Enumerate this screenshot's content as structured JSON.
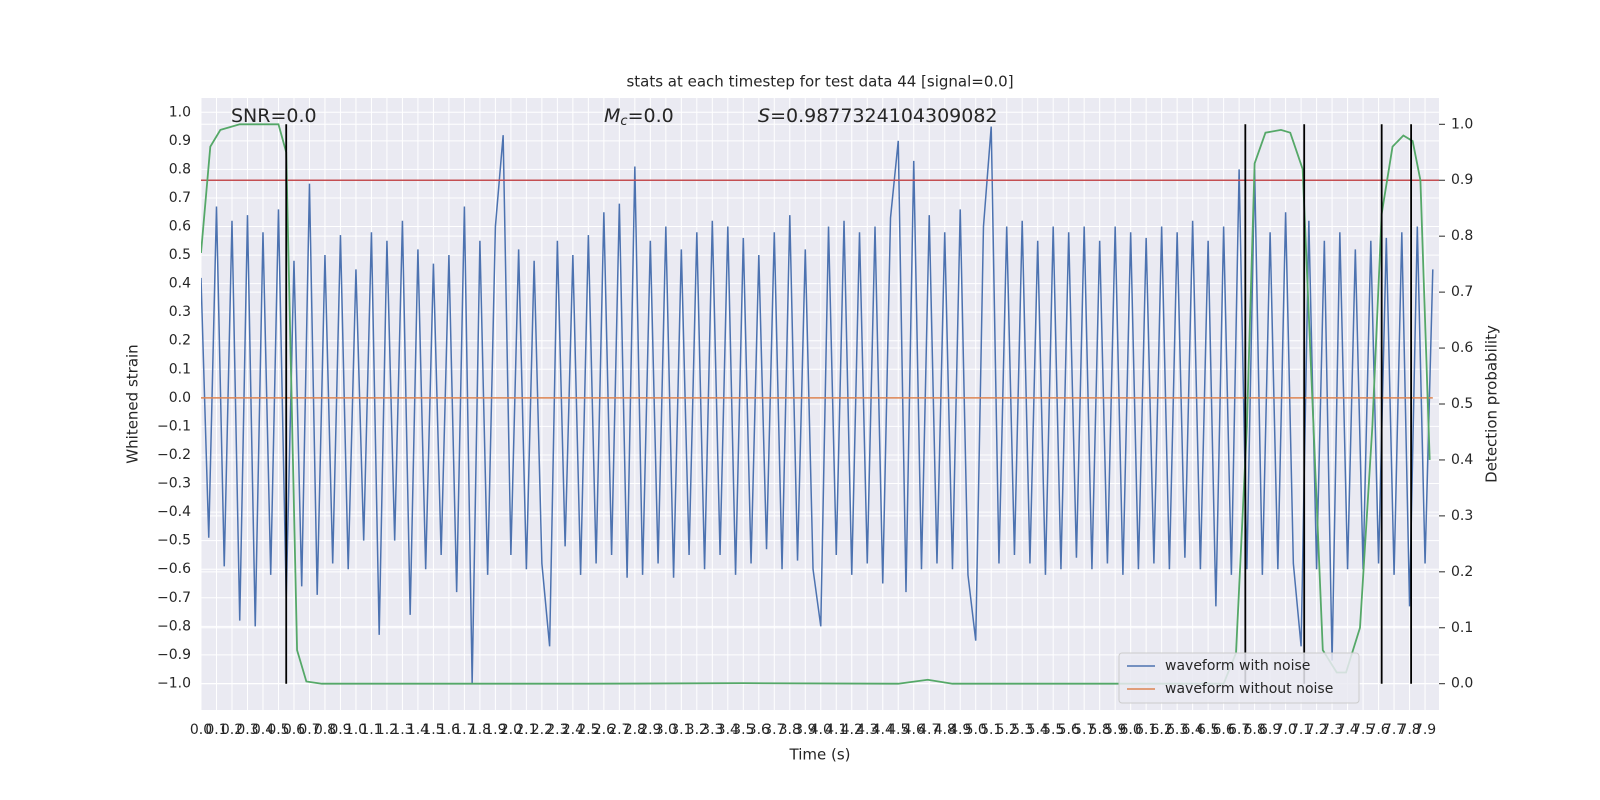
{
  "chart_data": {
    "type": "line",
    "title": "stats at each timestep for test data 44 [signal=0.0]",
    "xlabel": "Time (s)",
    "ylabel": "Whitened strain",
    "y2label": "Detection probability",
    "annotations": [
      {
        "text": "SNR=0.0"
      },
      {
        "symbol": "M",
        "subscript": "c",
        "text": "=0.0"
      },
      {
        "symbol": "S",
        "text": "=0.9877324104309082"
      }
    ],
    "xlim": [
      0,
      7.99
    ],
    "ylim": [
      -1.093,
      1.05
    ],
    "y2lim": [
      -0.047,
      1.047
    ],
    "grid": true,
    "background": "#eaeaf2",
    "legend": "lower right",
    "xticks": [
      {
        "value": 0,
        "label": "0.0"
      },
      0.1,
      0.2,
      0.3,
      0.4,
      0.5,
      0.6,
      0.7,
      0.8,
      0.9,
      {
        "value": 1,
        "label": "1.0"
      },
      1.1,
      1.2,
      1.3,
      1.4,
      1.5,
      1.6,
      1.7,
      1.8,
      1.9,
      {
        "value": 2,
        "label": "2.0"
      },
      2.1,
      2.2,
      2.3,
      2.4,
      2.5,
      2.6,
      2.7,
      2.8,
      2.9,
      {
        "value": 3,
        "label": "3.0"
      },
      3.1,
      3.2,
      3.3,
      3.4,
      3.5,
      3.6,
      3.7,
      3.8,
      3.9,
      {
        "value": 4,
        "label": "4.0"
      },
      4.1,
      4.2,
      4.3,
      4.4,
      4.5,
      4.6,
      4.7,
      4.8,
      4.9,
      {
        "value": 5,
        "label": "5.0"
      },
      5.1,
      5.2,
      5.3,
      5.4,
      5.5,
      5.6,
      5.7,
      5.8,
      5.9,
      {
        "value": 6,
        "label": "6.0"
      },
      6.1,
      6.2,
      6.3,
      6.4,
      6.5,
      6.6,
      6.7,
      6.8,
      6.9,
      {
        "value": 7,
        "label": "7.0"
      },
      7.1,
      7.2,
      7.3,
      7.4,
      7.5,
      7.6,
      7.7,
      7.8,
      7.9
    ],
    "yticks": [
      {
        "value": -1,
        "label": "−1.0"
      },
      {
        "value": -0.9,
        "label": "−0.9"
      },
      {
        "value": -0.8,
        "label": "−0.8"
      },
      {
        "value": -0.7,
        "label": "−0.7"
      },
      {
        "value": -0.6,
        "label": "−0.6"
      },
      {
        "value": -0.5,
        "label": "−0.5"
      },
      {
        "value": -0.4,
        "label": "−0.4"
      },
      {
        "value": -0.3,
        "label": "−0.3"
      },
      {
        "value": -0.2,
        "label": "−0.2"
      },
      {
        "value": -0.1,
        "label": "−0.1"
      },
      {
        "value": 0,
        "label": "0.0"
      },
      0.1,
      0.2,
      0.3,
      0.4,
      0.5,
      0.6,
      0.7,
      0.8,
      0.9,
      {
        "value": 1,
        "label": "1.0"
      }
    ],
    "y2ticks": [
      {
        "value": 0,
        "label": "0.0"
      },
      0.1,
      0.2,
      0.3,
      0.4,
      0.5,
      0.6,
      0.7,
      0.8,
      0.9,
      {
        "value": 1,
        "label": "1.0"
      }
    ],
    "series": [
      {
        "name": "waveform with noise",
        "color": "#4c72b0",
        "axis": "y",
        "x": [
          0,
          0.05,
          0.1,
          0.15,
          0.2,
          0.25,
          0.3,
          0.35,
          0.4,
          0.45,
          0.5,
          0.55,
          0.6,
          0.65,
          0.7,
          0.75,
          0.8,
          0.85,
          0.9,
          0.95,
          1,
          1.05,
          1.1,
          1.15,
          1.2,
          1.25,
          1.3,
          1.35,
          1.4,
          1.45,
          1.5,
          1.55,
          1.6,
          1.65,
          1.7,
          1.75,
          1.8,
          1.85,
          1.9,
          1.95,
          2,
          2.05,
          2.1,
          2.15,
          2.2,
          2.25,
          2.3,
          2.35,
          2.4,
          2.45,
          2.5,
          2.55,
          2.6,
          2.65,
          2.7,
          2.75,
          2.8,
          2.85,
          2.9,
          2.95,
          3,
          3.05,
          3.1,
          3.15,
          3.2,
          3.25,
          3.3,
          3.35,
          3.4,
          3.45,
          3.5,
          3.55,
          3.6,
          3.65,
          3.7,
          3.75,
          3.8,
          3.85,
          3.9,
          3.95,
          4,
          4.05,
          4.1,
          4.15,
          4.2,
          4.25,
          4.3,
          4.35,
          4.4,
          4.45,
          4.5,
          4.55,
          4.6,
          4.65,
          4.7,
          4.75,
          4.8,
          4.85,
          4.9,
          4.95,
          5,
          5.05,
          5.1,
          5.15,
          5.2,
          5.25,
          5.3,
          5.35,
          5.4,
          5.45,
          5.5,
          5.55,
          5.6,
          5.65,
          5.7,
          5.75,
          5.8,
          5.85,
          5.9,
          5.95,
          6,
          6.05,
          6.1,
          6.15,
          6.2,
          6.25,
          6.3,
          6.35,
          6.4,
          6.45,
          6.5,
          6.55,
          6.6,
          6.65,
          6.7,
          6.75,
          6.8,
          6.85,
          6.9,
          6.95,
          7,
          7.05,
          7.1,
          7.15,
          7.2,
          7.25,
          7.3,
          7.35,
          7.4,
          7.45,
          7.5,
          7.55,
          7.6,
          7.65,
          7.7,
          7.75,
          7.8,
          7.85,
          7.9,
          7.95
        ],
        "values": [
          0.42,
          -0.49,
          0.67,
          -0.59,
          0.62,
          -0.78,
          0.64,
          -0.8,
          0.58,
          -0.62,
          0.66,
          -0.7,
          0.48,
          -0.66,
          0.75,
          -0.69,
          0.5,
          -0.58,
          0.57,
          -0.6,
          0.45,
          -0.5,
          0.58,
          -0.83,
          0.55,
          -0.5,
          0.62,
          -0.76,
          0.52,
          -0.6,
          0.47,
          -0.55,
          0.5,
          -0.68,
          0.67,
          -1.0,
          0.55,
          -0.62,
          0.6,
          0.92,
          -0.55,
          0.52,
          -0.6,
          0.48,
          -0.58,
          -0.87,
          0.55,
          -0.52,
          0.5,
          -0.62,
          0.57,
          -0.58,
          0.65,
          -0.55,
          0.68,
          -0.63,
          0.81,
          -0.62,
          0.55,
          -0.58,
          0.6,
          -0.63,
          0.52,
          -0.55,
          0.58,
          -0.6,
          0.62,
          -0.55,
          0.6,
          -0.62,
          0.56,
          -0.58,
          0.5,
          -0.53,
          0.58,
          -0.6,
          0.64,
          -0.57,
          0.52,
          -0.6,
          -0.8,
          0.6,
          -0.55,
          0.62,
          -0.62,
          0.58,
          -0.58,
          0.6,
          -0.65,
          0.63,
          0.9,
          -0.68,
          0.83,
          -0.6,
          0.64,
          -0.58,
          0.58,
          -0.6,
          0.66,
          -0.62,
          -0.85,
          0.6,
          0.95,
          -0.58,
          0.6,
          -0.55,
          0.62,
          -0.58,
          0.55,
          -0.62,
          0.6,
          -0.6,
          0.58,
          -0.56,
          0.6,
          -0.6,
          0.55,
          -0.58,
          0.6,
          -0.62,
          0.58,
          -0.6,
          0.56,
          -0.58,
          0.6,
          -0.6,
          0.58,
          -0.56,
          0.62,
          -0.6,
          0.55,
          -0.73,
          0.6,
          -0.62,
          0.8,
          -0.6,
          0.8,
          -0.62,
          0.58,
          -0.6,
          0.65,
          -0.58,
          -0.87,
          0.62,
          -0.6,
          0.55,
          -0.92,
          0.58,
          -0.6,
          0.52,
          -0.6,
          0.55,
          -0.58,
          0.56,
          -0.62,
          0.58,
          -0.73,
          0.6,
          -0.58,
          0.45
        ]
      },
      {
        "name": "waveform without noise",
        "color": "#dd8452",
        "axis": "y",
        "x": [
          0,
          7.95
        ],
        "values": [
          0,
          0
        ]
      }
    ],
    "probability": {
      "color": "#55a868",
      "axis": "y2",
      "x": [
        0,
        0.06,
        0.125,
        0.25,
        0.375,
        0.5,
        0.55,
        0.62,
        0.68,
        0.78,
        1.5,
        2.5,
        3.5,
        4.5,
        4.69,
        4.85,
        5.5,
        6.5,
        6.6,
        6.68,
        6.75,
        6.8,
        6.87,
        6.97,
        7.03,
        7.11,
        7.18,
        7.24,
        7.33,
        7.39,
        7.48,
        7.56,
        7.62,
        7.69,
        7.76,
        7.82,
        7.87,
        7.93
      ],
      "values": [
        0.77,
        0.96,
        0.99,
        1.0,
        1.0,
        1.0,
        0.95,
        0.06,
        0.004,
        0.0,
        0.0,
        0.0,
        0.001,
        0.0,
        0.007,
        0.0,
        0.0,
        0.0,
        0.0,
        0.055,
        0.46,
        0.93,
        0.985,
        0.99,
        0.985,
        0.92,
        0.46,
        0.06,
        0.02,
        0.02,
        0.1,
        0.46,
        0.84,
        0.96,
        0.98,
        0.97,
        0.9,
        0.4
      ]
    },
    "threshold": {
      "value": 0.9,
      "axis": "y2",
      "color": "#c44e52"
    },
    "vlines": {
      "x": [
        0.55,
        6.74,
        7.12,
        7.62,
        7.81
      ],
      "y2range": [
        0,
        1
      ],
      "color": "#000000"
    }
  }
}
